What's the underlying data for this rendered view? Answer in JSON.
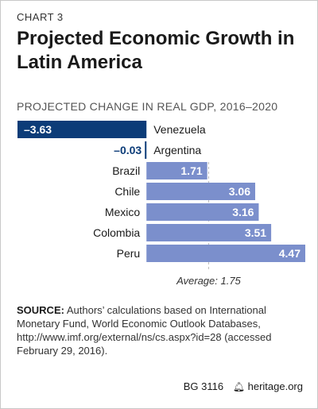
{
  "header": {
    "kicker": "CHART 3",
    "title": "Projected Economic Growth in Latin America"
  },
  "chart_data": {
    "type": "bar",
    "orientation": "horizontal",
    "title": "Projected Economic Growth in Latin America",
    "subtitle": "PROJECTED CHANGE IN REAL GDP, 2016–2020",
    "categories": [
      "Venezuela",
      "Argentina",
      "Brazil",
      "Chile",
      "Mexico",
      "Colombia",
      "Peru"
    ],
    "values": [
      -3.63,
      -0.03,
      1.71,
      3.06,
      3.16,
      3.51,
      4.47
    ],
    "value_labels": [
      "–3.63",
      "–0.03",
      "1.71",
      "3.06",
      "3.16",
      "3.51",
      "4.47"
    ],
    "average": {
      "label": "Average: 1.75",
      "value": 1.75
    },
    "xlim": [
      -3.63,
      4.47
    ],
    "colors": {
      "negative": "#0c3c78",
      "positive": "#7b8fcc",
      "average_line": "#bbbbbb"
    },
    "grid": false,
    "legend": "none"
  },
  "source": {
    "label": "SOURCE:",
    "text": "Authors’ calculations based on International Monetary Fund, World Economic Outlook Databases, http://www.imf.org/external/ns/cs.aspx?id=28 (accessed February 29, 2016)."
  },
  "footer": {
    "code": "BG 3116",
    "icon": "bell-icon",
    "site": "heritage.org"
  }
}
